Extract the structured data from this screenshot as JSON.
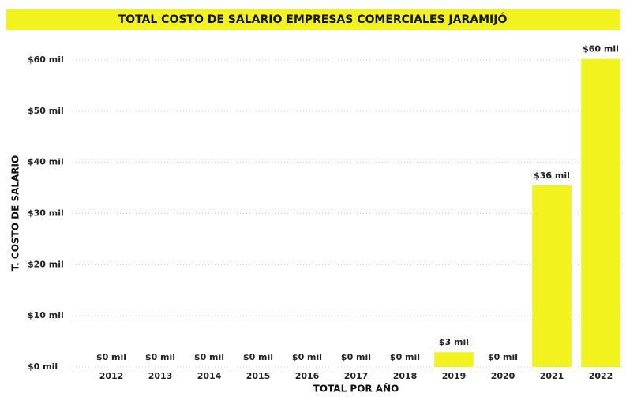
{
  "chart_data": {
    "type": "bar",
    "title": "TOTAL COSTO DE SALARIO EMPRESAS COMERCIALES JARAMIJÓ",
    "x_label": "TOTAL POR AÑO",
    "y_label": "T. COSTO DE SALARIO",
    "categories": [
      "2012",
      "2013",
      "2014",
      "2015",
      "2016",
      "2017",
      "2018",
      "2019",
      "2020",
      "2021",
      "2022"
    ],
    "values": [
      0,
      0,
      0,
      0,
      0,
      0,
      0,
      2.9,
      0,
      35.5,
      60.2
    ],
    "value_labels": [
      "$0 mil",
      "$0 mil",
      "$0 mil",
      "$0 mil",
      "$0 mil",
      "$0 mil",
      "$0 mil",
      "$3 mil",
      "$0 mil",
      "$36 mil",
      "$60 mil"
    ],
    "color": "#f2f21f",
    "title_background": "#f2f21f",
    "ylim": [
      0,
      60
    ],
    "yticks": [
      {
        "value": 0,
        "label": "$0 mil"
      },
      {
        "value": 10,
        "label": "$10 mil"
      },
      {
        "value": 20,
        "label": "$20 mil"
      },
      {
        "value": 30,
        "label": "$30 mil"
      },
      {
        "value": 40,
        "label": "$40 mil"
      },
      {
        "value": 50,
        "label": "$50 mil"
      },
      {
        "value": 60,
        "label": "$60 mil"
      }
    ],
    "grid": true
  }
}
